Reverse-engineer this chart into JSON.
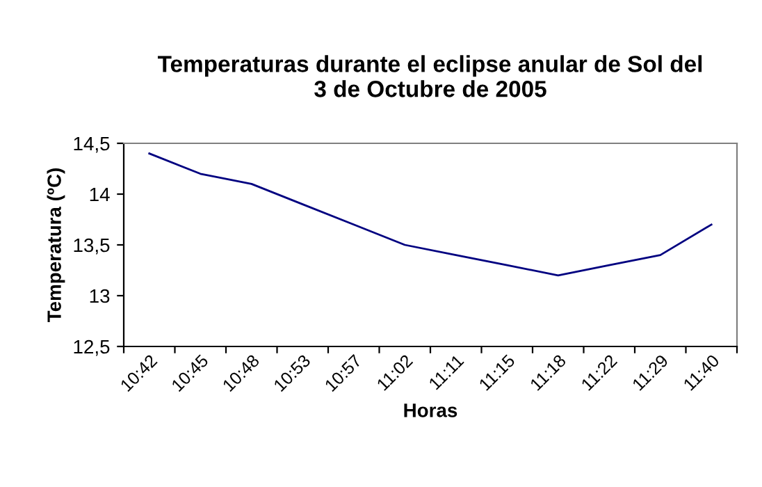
{
  "chart_data": {
    "type": "line",
    "title": "Temperaturas durante el eclipse anular de Sol del\n3 de Octubre de 2005",
    "xlabel": "Horas",
    "ylabel": "Temperatura (ºC)",
    "categories": [
      "10:42",
      "10:45",
      "10:48",
      "10:53",
      "10:57",
      "11:02",
      "11:11",
      "11:15",
      "11:18",
      "11:22",
      "11:29",
      "11:40"
    ],
    "series": [
      {
        "color": "#000080",
        "values": [
          14.4,
          14.2,
          14.1,
          13.9,
          13.7,
          13.5,
          13.4,
          13.3,
          13.2,
          13.3,
          13.4,
          13.7
        ]
      }
    ],
    "ylim": [
      12.5,
      14.5
    ],
    "yticks": [
      {
        "value": 12.5,
        "label": "12,5"
      },
      13,
      {
        "value": 13.5,
        "label": "13,5"
      },
      14,
      {
        "value": 14.5,
        "label": "14,5"
      }
    ],
    "marker": "none",
    "line_style": "solid"
  }
}
